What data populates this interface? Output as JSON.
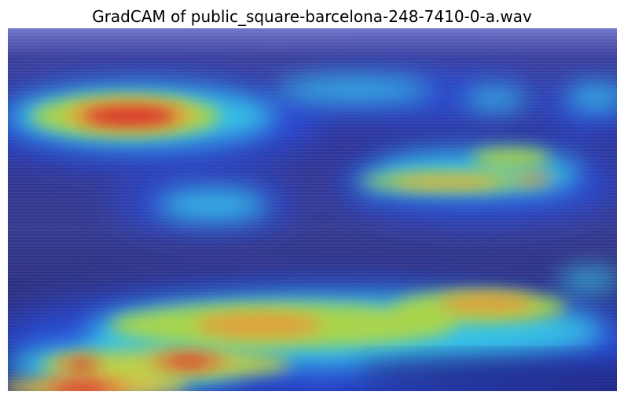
{
  "figure": {
    "title": "GradCAM of public_square-barcelona-248-7410-0-a.wav"
  },
  "image": {
    "description_icon": "gradcam-heatmap-image",
    "colormap": "jet",
    "colors": {
      "background_low": "#2b2f86",
      "low": "#2a38c8",
      "mid_low": "#38c8e6",
      "mid": "#8fd24a",
      "mid_high": "#e8c83a",
      "high": "#d8232a"
    }
  }
}
